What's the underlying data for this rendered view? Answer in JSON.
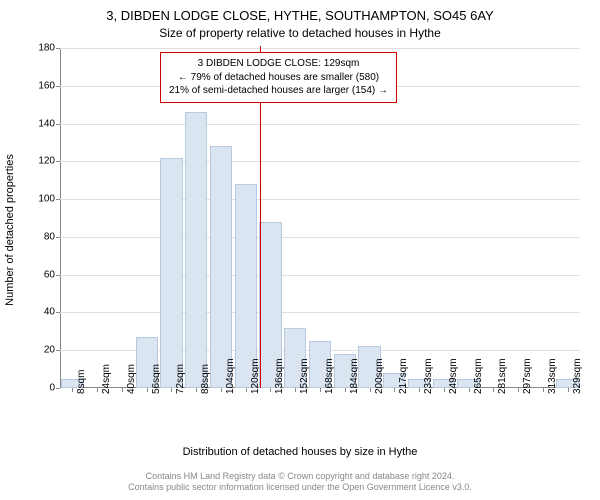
{
  "title": "3, DIBDEN LODGE CLOSE, HYTHE, SOUTHAMPTON, SO45 6AY",
  "subtitle": "Size of property relative to detached houses in Hythe",
  "y_axis_label": "Number of detached properties",
  "x_axis_label": "Distribution of detached houses by size in Hythe",
  "footer_line1": "Contains HM Land Registry data © Crown copyright and database right 2024.",
  "footer_line2": "Contains public sector information licensed under the Open Government Licence v3.0.",
  "chart": {
    "type": "histogram",
    "ylim": [
      0,
      180
    ],
    "ytick_step": 20,
    "bar_fill": "#dbe5f1",
    "bar_stroke": "#b8c9e0",
    "grid_color": "#e0e0e0",
    "background_color": "#ffffff",
    "ref_line_color": "#cc0000",
    "ref_line_value": 129,
    "x_categories": [
      "8sqm",
      "24sqm",
      "40sqm",
      "56sqm",
      "72sqm",
      "88sqm",
      "104sqm",
      "120sqm",
      "136sqm",
      "152sqm",
      "168sqm",
      "184sqm",
      "200sqm",
      "217sqm",
      "233sqm",
      "249sqm",
      "265sqm",
      "281sqm",
      "297sqm",
      "313sqm",
      "329sqm"
    ],
    "values": [
      5,
      0,
      0,
      27,
      122,
      146,
      128,
      108,
      88,
      32,
      25,
      18,
      22,
      8,
      5,
      5,
      5,
      0,
      0,
      0,
      5
    ]
  },
  "info_box": {
    "line1": "3 DIBDEN LODGE CLOSE: 129sqm",
    "line2": "← 79% of detached houses are smaller (580)",
    "line3": "21% of semi-detached houses are larger (154) →"
  }
}
